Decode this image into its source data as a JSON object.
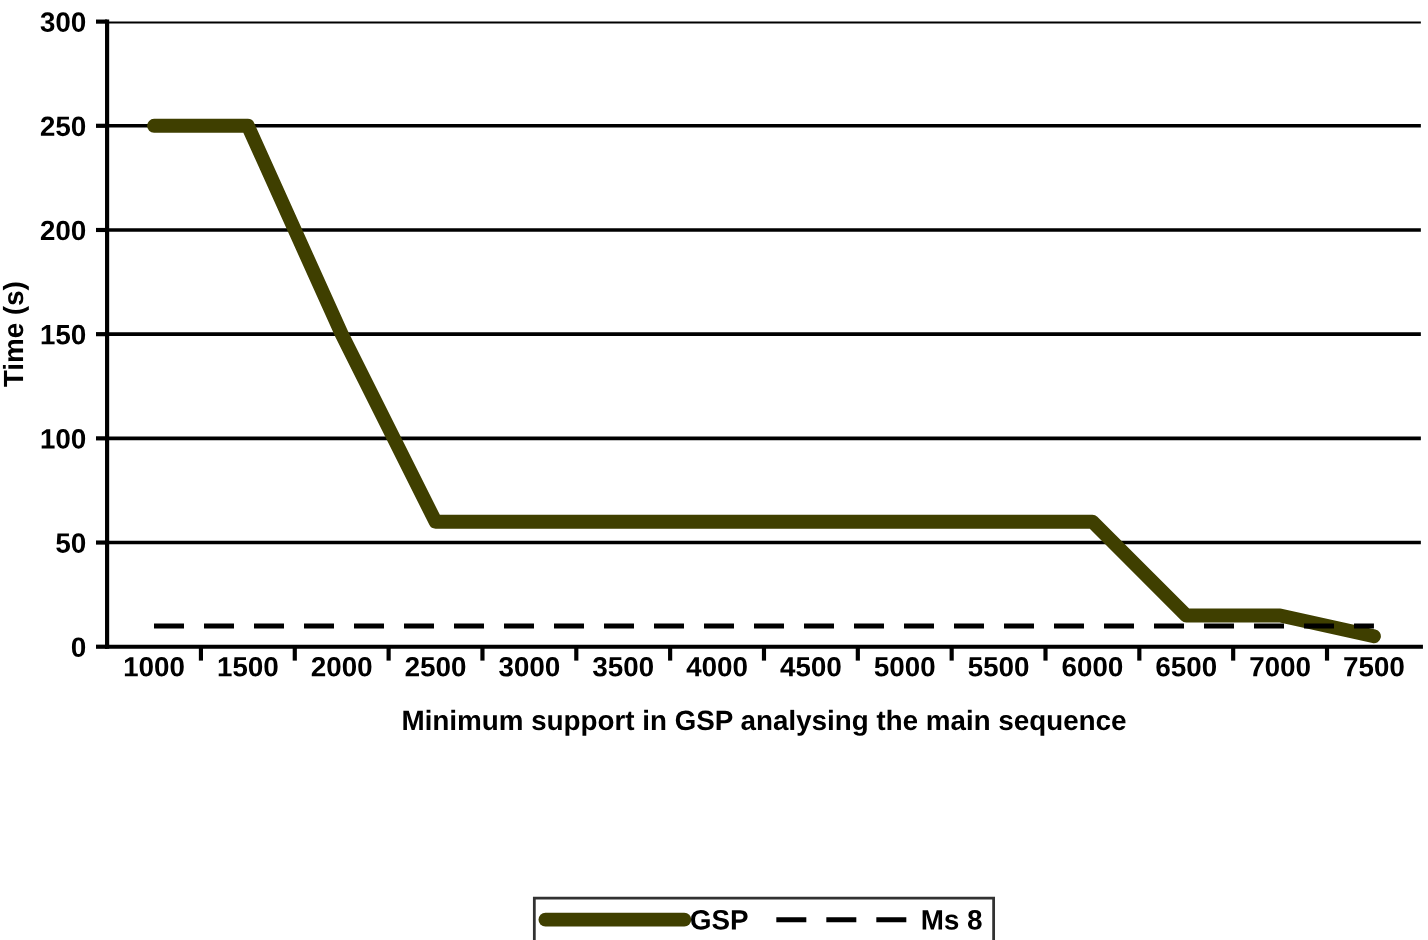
{
  "chart_data": {
    "type": "line",
    "xlabel": "Minimum support in GSP analysing the main sequence",
    "ylabel": "Time (s)",
    "categories": [
      "1000",
      "1500",
      "2000",
      "2500",
      "3000",
      "3500",
      "4000",
      "4500",
      "5000",
      "5500",
      "6000",
      "6500",
      "7000",
      "7500"
    ],
    "series": [
      {
        "name": "GSP",
        "color": "#3f3f00",
        "line_style": "solid",
        "values": [
          250,
          250,
          150,
          60,
          60,
          60,
          60,
          60,
          60,
          60,
          60,
          15,
          15,
          5
        ]
      },
      {
        "name": "Ms 8",
        "color": "#000000",
        "line_style": "dashed",
        "values": [
          10,
          10,
          10,
          10,
          10,
          10,
          10,
          10,
          10,
          10,
          10,
          10,
          10,
          10
        ]
      }
    ],
    "ylim": [
      0,
      300
    ],
    "yticks": [
      0,
      50,
      100,
      150,
      200,
      250,
      300
    ],
    "grid": "y",
    "legend": "bottom",
    "marker": "none"
  }
}
